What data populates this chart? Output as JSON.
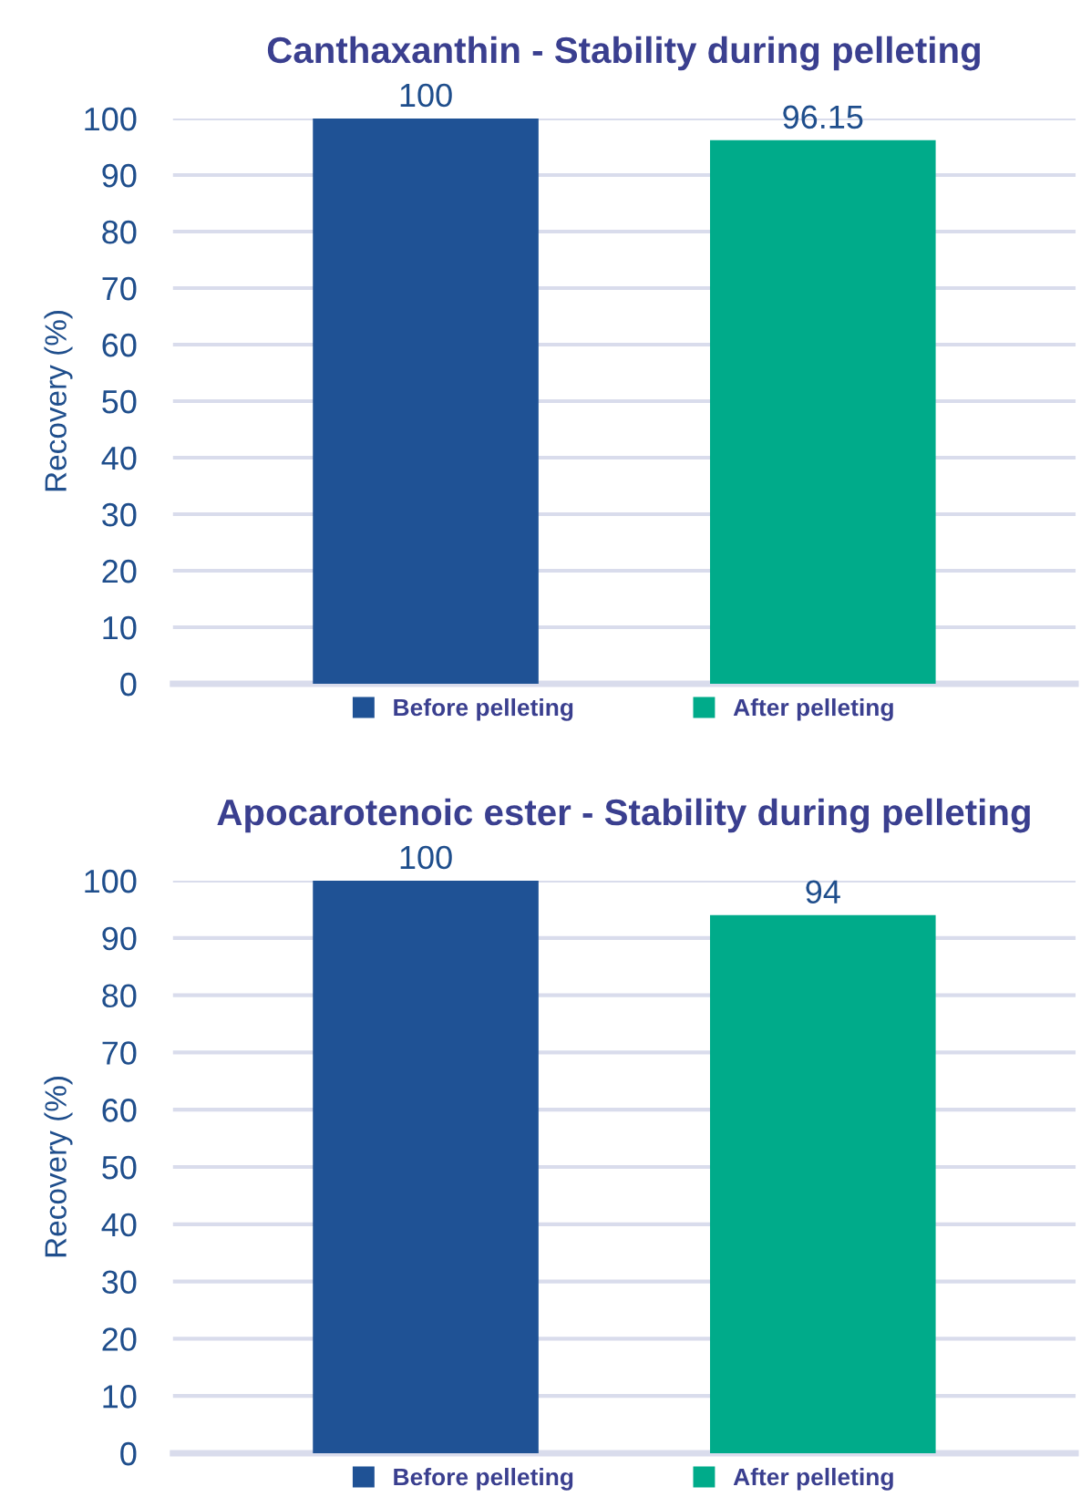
{
  "chart_data": [
    {
      "type": "bar",
      "title": "Canthaxanthin - Stability during pelleting",
      "ylabel": "Recovery (%)",
      "categories": [
        null
      ],
      "series": [
        {
          "name": "Before pelleting",
          "color": "#1f5295",
          "values": [
            100
          ]
        },
        {
          "name": "After pelleting",
          "color": "#00ab8a",
          "values": [
            96.15
          ]
        }
      ],
      "ylim": [
        0,
        100
      ],
      "yticks": [
        0,
        10,
        20,
        30,
        40,
        50,
        60,
        70,
        80,
        90,
        100
      ],
      "grid": "y",
      "legend": "bottom",
      "data_labels": true
    },
    {
      "type": "bar",
      "title": "Apocarotenoic ester - Stability during pelleting",
      "ylabel": "Recovery (%)",
      "categories": [
        null
      ],
      "series": [
        {
          "name": "Before pelleting",
          "color": "#1f5295",
          "values": [
            100
          ]
        },
        {
          "name": "After pelleting",
          "color": "#00ab8a",
          "values": [
            94
          ]
        }
      ],
      "ylim": [
        0,
        100
      ],
      "yticks": [
        0,
        10,
        20,
        30,
        40,
        50,
        60,
        70,
        80,
        90,
        100
      ],
      "grid": "y",
      "legend": "bottom",
      "data_labels": true
    }
  ]
}
